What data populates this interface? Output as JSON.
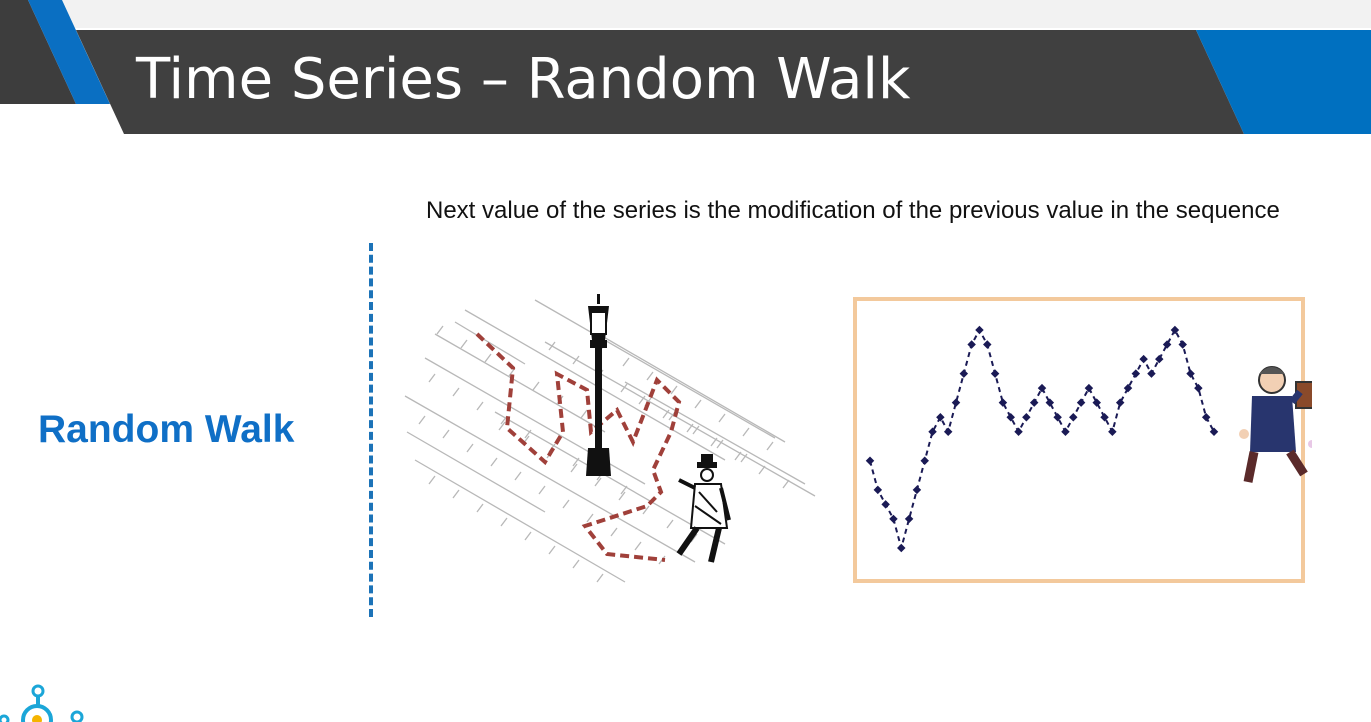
{
  "slide": {
    "title": "Time Series – Random Walk",
    "side_heading": "Random Walk",
    "body_text": "Next value of the series is the modification of the previous value in the sequence"
  },
  "colors": {
    "header_bar": "#404040",
    "accent_blue": "#0070c0",
    "heading_blue": "#0f6fc6",
    "path_red": "#a0403a",
    "chart_point": "#1a1a55",
    "chart_frame": "#f3c99c"
  },
  "icons": [
    "street-lamp-icon",
    "walking-man-icon",
    "man-with-mug-icon",
    "bulb-logo-icon"
  ],
  "chart_data": {
    "type": "line",
    "title": "",
    "xlabel": "",
    "ylabel": "",
    "grid": false,
    "series": [
      {
        "values": [
          0,
          -2,
          -3,
          -4,
          -6,
          -4,
          -2,
          0,
          2,
          3,
          2,
          4,
          6,
          8,
          9,
          8,
          6,
          4,
          3,
          2,
          3,
          4,
          5,
          4,
          3,
          2,
          3,
          4,
          5,
          4,
          3,
          2,
          4,
          5,
          6,
          7,
          6,
          7,
          8,
          9,
          8,
          6,
          5,
          3,
          2
        ]
      }
    ]
  }
}
